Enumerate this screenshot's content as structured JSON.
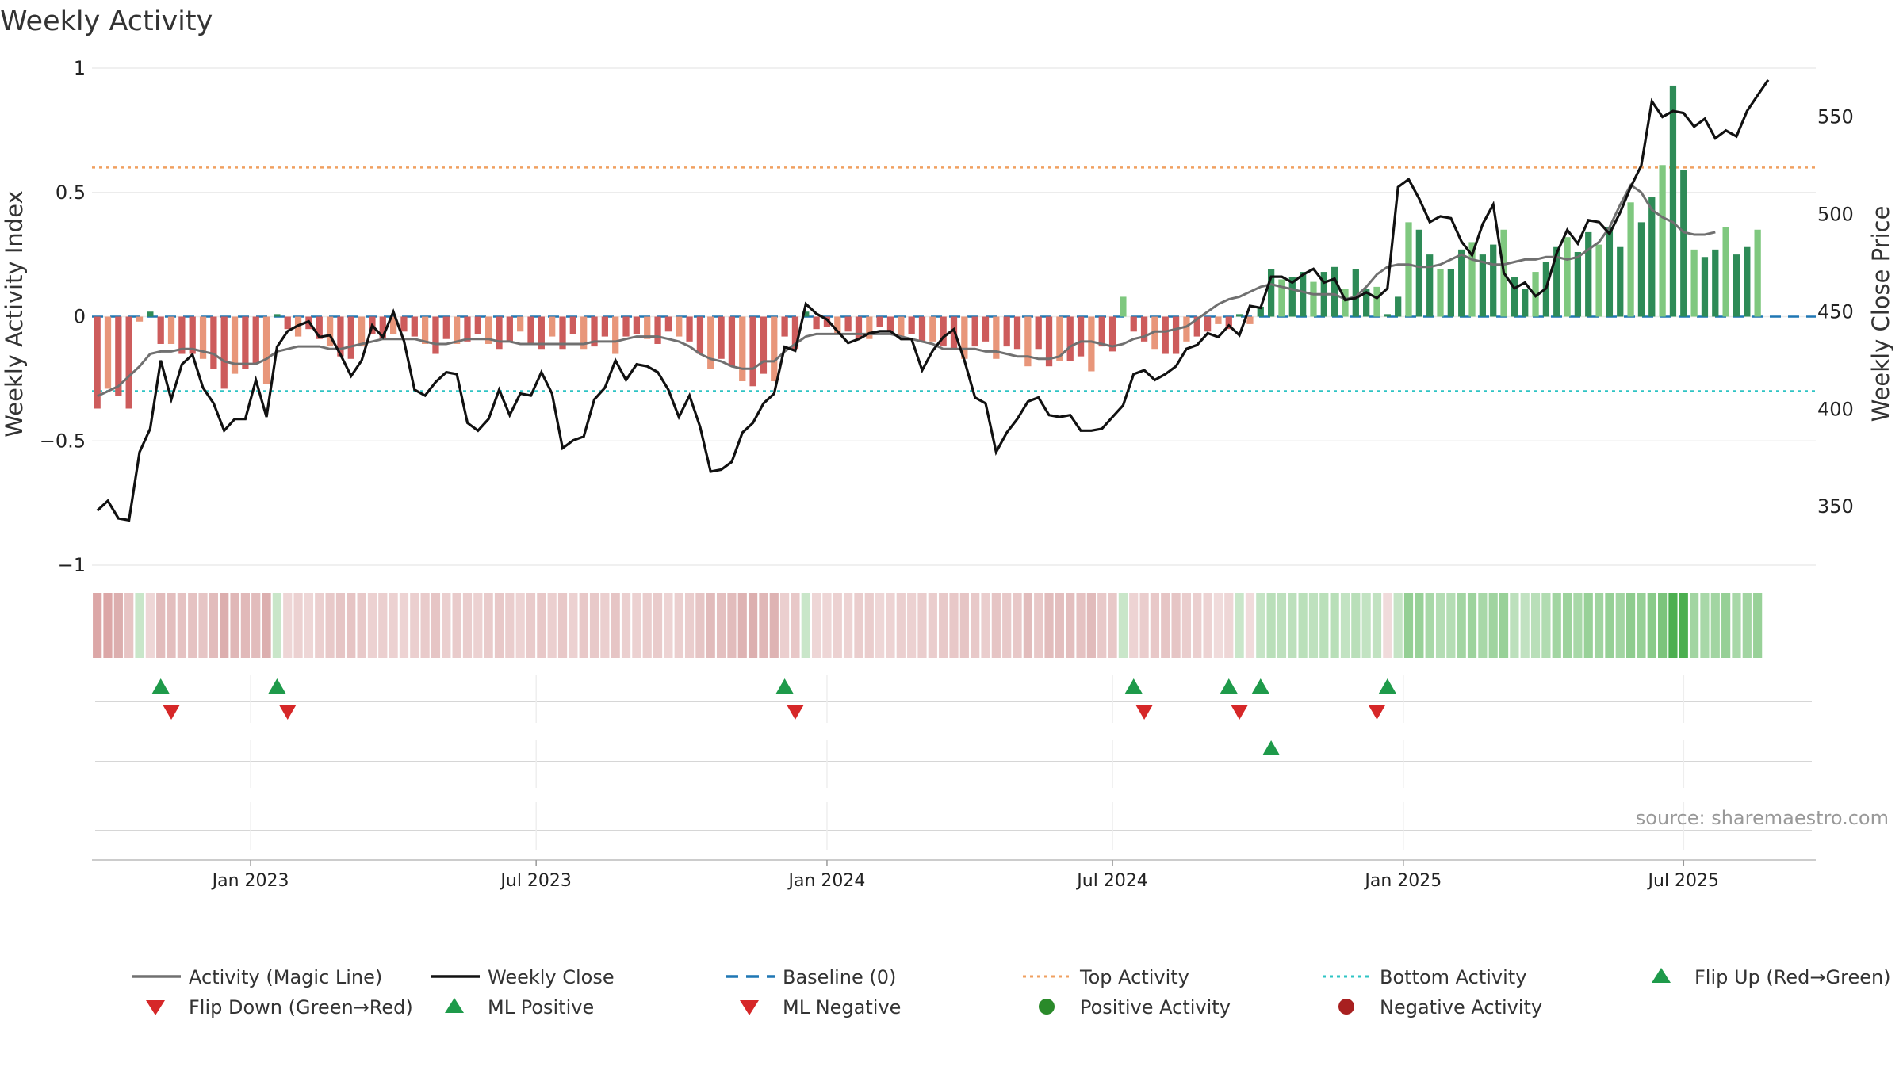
{
  "chart_data": {
    "type": "bar+line",
    "title": "Weekly Activity",
    "ylabel_left": "Weekly Activity Index",
    "ylabel_right": "Weekly Close Price",
    "ylim_left": [
      -1,
      1
    ],
    "ylim_right": [
      320,
      575
    ],
    "left_ticks": [
      {
        "v": 1,
        "label": "1"
      },
      {
        "v": 0.5,
        "label": "0.5"
      },
      {
        "v": 0,
        "label": "0"
      },
      {
        "v": -0.5,
        "label": "−0.5"
      },
      {
        "v": -1,
        "label": "−1"
      }
    ],
    "right_ticks": [
      {
        "v": 550,
        "label": "550"
      },
      {
        "v": 500,
        "label": "500"
      },
      {
        "v": 450,
        "label": "450"
      },
      {
        "v": 400,
        "label": "400"
      },
      {
        "v": 350,
        "label": "350"
      }
    ],
    "x_range_weeks": [
      0,
      163
    ],
    "x_ticks": [
      {
        "week": 15,
        "label": "Jan 2023"
      },
      {
        "week": 42,
        "label": "Jul 2023"
      },
      {
        "week": 69.5,
        "label": "Jan 2024"
      },
      {
        "week": 96.5,
        "label": "Jul 2024"
      },
      {
        "week": 124,
        "label": "Jan 2025"
      },
      {
        "week": 150.5,
        "label": "Jul 2025"
      }
    ],
    "top_activity": 0.6,
    "bottom_activity": -0.3,
    "baseline": 0,
    "activity": [
      -0.37,
      -0.29,
      -0.32,
      -0.37,
      -0.02,
      0.02,
      -0.11,
      -0.11,
      -0.15,
      -0.15,
      -0.17,
      -0.21,
      -0.29,
      -0.23,
      -0.21,
      -0.19,
      -0.27,
      0.01,
      -0.05,
      -0.08,
      -0.05,
      -0.09,
      -0.12,
      -0.16,
      -0.17,
      -0.12,
      -0.07,
      -0.09,
      -0.07,
      -0.06,
      -0.08,
      -0.11,
      -0.15,
      -0.09,
      -0.11,
      -0.1,
      -0.07,
      -0.11,
      -0.13,
      -0.1,
      -0.06,
      -0.11,
      -0.13,
      -0.08,
      -0.13,
      -0.07,
      -0.13,
      -0.12,
      -0.08,
      -0.15,
      -0.08,
      -0.07,
      -0.09,
      -0.11,
      -0.06,
      -0.08,
      -0.1,
      -0.15,
      -0.21,
      -0.17,
      -0.2,
      -0.26,
      -0.28,
      -0.23,
      -0.26,
      -0.08,
      -0.13,
      0.02,
      -0.05,
      -0.04,
      -0.07,
      -0.06,
      -0.09,
      -0.09,
      -0.04,
      -0.06,
      -0.08,
      -0.07,
      -0.1,
      -0.1,
      -0.12,
      -0.13,
      -0.17,
      -0.12,
      -0.1,
      -0.17,
      -0.12,
      -0.13,
      -0.2,
      -0.13,
      -0.2,
      -0.18,
      -0.18,
      -0.16,
      -0.22,
      -0.12,
      -0.14,
      0.08,
      -0.06,
      -0.1,
      -0.13,
      -0.15,
      -0.15,
      -0.1,
      -0.08,
      -0.06,
      -0.03,
      -0.05,
      0.01,
      -0.03,
      0.04,
      0.19,
      0.15,
      0.16,
      0.18,
      0.14,
      0.18,
      0.2,
      0.11,
      0.19,
      0.11,
      0.12,
      0.01,
      0.08,
      0.38,
      0.35,
      0.25,
      0.19,
      0.19,
      0.27,
      0.3,
      0.25,
      0.29,
      0.35,
      0.16,
      0.11,
      0.18,
      0.22,
      0.28,
      0.32,
      0.26,
      0.34,
      0.29,
      0.36,
      0.28,
      0.46,
      0.38,
      0.48,
      0.61,
      0.93,
      0.59,
      0.27,
      0.24,
      0.27,
      0.36,
      0.25,
      0.28,
      0.35
    ],
    "magic_line": [
      -0.32,
      -0.3,
      -0.28,
      -0.24,
      -0.2,
      -0.15,
      -0.14,
      -0.14,
      -0.13,
      -0.13,
      -0.14,
      -0.15,
      -0.18,
      -0.19,
      -0.19,
      -0.19,
      -0.17,
      -0.14,
      -0.13,
      -0.12,
      -0.12,
      -0.12,
      -0.13,
      -0.13,
      -0.12,
      -0.11,
      -0.1,
      -0.09,
      -0.09,
      -0.09,
      -0.09,
      -0.1,
      -0.11,
      -0.11,
      -0.1,
      -0.09,
      -0.09,
      -0.09,
      -0.1,
      -0.1,
      -0.11,
      -0.11,
      -0.11,
      -0.11,
      -0.11,
      -0.11,
      -0.11,
      -0.1,
      -0.1,
      -0.1,
      -0.09,
      -0.08,
      -0.08,
      -0.08,
      -0.09,
      -0.1,
      -0.12,
      -0.15,
      -0.17,
      -0.18,
      -0.2,
      -0.21,
      -0.21,
      -0.18,
      -0.18,
      -0.14,
      -0.11,
      -0.08,
      -0.07,
      -0.07,
      -0.07,
      -0.07,
      -0.07,
      -0.07,
      -0.07,
      -0.07,
      -0.08,
      -0.09,
      -0.1,
      -0.11,
      -0.13,
      -0.13,
      -0.13,
      -0.13,
      -0.14,
      -0.14,
      -0.15,
      -0.16,
      -0.16,
      -0.17,
      -0.17,
      -0.16,
      -0.12,
      -0.1,
      -0.1,
      -0.11,
      -0.12,
      -0.11,
      -0.09,
      -0.08,
      -0.06,
      -0.06,
      -0.05,
      -0.04,
      -0.01,
      0.02,
      0.05,
      0.07,
      0.08,
      0.1,
      0.12,
      0.13,
      0.12,
      0.11,
      0.1,
      0.09,
      0.09,
      0.09,
      0.07,
      0.08,
      0.12,
      0.17,
      0.2,
      0.21,
      0.21,
      0.2,
      0.2,
      0.21,
      0.23,
      0.25,
      0.23,
      0.22,
      0.21,
      0.21,
      0.22,
      0.23,
      0.23,
      0.24,
      0.24,
      0.23,
      0.24,
      0.27,
      0.3,
      0.36,
      0.45,
      0.53,
      0.5,
      0.43,
      0.4,
      0.38,
      0.34,
      0.33,
      0.33,
      0.34
    ],
    "weekly_close": [
      348,
      353,
      344,
      343,
      378,
      390,
      425,
      405,
      423,
      428,
      411,
      403,
      389,
      395,
      395,
      415,
      396,
      432,
      440,
      443,
      445,
      437,
      438,
      428,
      417,
      425,
      443,
      437,
      450,
      435,
      410,
      407,
      414,
      419,
      418,
      393,
      389,
      395,
      410,
      397,
      408,
      407,
      419,
      408,
      380,
      384,
      386,
      405,
      411,
      425,
      415,
      423,
      422,
      419,
      410,
      396,
      407,
      391,
      368,
      369,
      373,
      388,
      393,
      403,
      408,
      432,
      430,
      454,
      449,
      446,
      440,
      434,
      436,
      439,
      440,
      440,
      436,
      436,
      420,
      430,
      437,
      441,
      425,
      406,
      403,
      378,
      388,
      395,
      404,
      406,
      397,
      396,
      397,
      389,
      389,
      390,
      396,
      402,
      418,
      420,
      415,
      418,
      422,
      431,
      433,
      439,
      437,
      443,
      438,
      453,
      452,
      468,
      468,
      465,
      469,
      472,
      465,
      467,
      456,
      457,
      460,
      457,
      462,
      514,
      518,
      508,
      496,
      499,
      498,
      486,
      479,
      495,
      505,
      470,
      462,
      465,
      458,
      462,
      480,
      492,
      485,
      497,
      496,
      490,
      501,
      514,
      525,
      558,
      550,
      553,
      552,
      545,
      549,
      539,
      543,
      540,
      553,
      561,
      569
    ],
    "segment_shades": [
      "#dca7a7",
      "#dca7a7",
      "#dcaeae",
      "#e7c4c4",
      "#c9e6c9",
      "#eed6d6",
      "#e2bcbc",
      "#e3bebe",
      "#e5c2c2",
      "#e5c2c2",
      "#e6c5c5",
      "#e2bcbc",
      "#dcaeae",
      "#e0b7b7",
      "#e1b9b9",
      "#e2bcbc",
      "#dcafaf",
      "#c9e6c9",
      "#eed6d6",
      "#ecd1d1",
      "#eed6d6",
      "#ebcfcf",
      "#e8c9c9",
      "#e6c5c5",
      "#e6c4c4",
      "#e8c9c9",
      "#ecd1d1",
      "#ebcfcf",
      "#ecd1d1",
      "#edd3d3",
      "#ebcfcf",
      "#e9cbcb",
      "#e6c5c5",
      "#ebcfcf",
      "#e9cbcb",
      "#eacdcd",
      "#ecd1d1",
      "#e9cbcb",
      "#e8c8c8",
      "#eacdcd",
      "#edd3d3",
      "#e9cbcb",
      "#e8c8c8",
      "#ebcfcf",
      "#e8c8c8",
      "#ecd1d1",
      "#e8c8c8",
      "#e8c9c9",
      "#ebcfcf",
      "#e6c5c5",
      "#ebcfcf",
      "#ecd1d1",
      "#eacdcd",
      "#e9cbcb",
      "#edd3d3",
      "#ebcfcf",
      "#eacdcd",
      "#e6c5c5",
      "#e1bbbb",
      "#e4c0c0",
      "#e2bcbc",
      "#deb3b3",
      "#dcafaf",
      "#e0b7b7",
      "#deb3b3",
      "#ebcfcf",
      "#e8c8c8",
      "#c9e6c9",
      "#eed6d6",
      "#eed6d6",
      "#ecd1d1",
      "#edd3d3",
      "#eacdcd",
      "#eacdcd",
      "#eed6d6",
      "#edd3d3",
      "#ebcfcf",
      "#ecd1d1",
      "#eacdcd",
      "#eacdcd",
      "#e8c9c9",
      "#e8c8c8",
      "#e6c5c5",
      "#e8c9c9",
      "#eacdcd",
      "#e6c5c5",
      "#e8c9c9",
      "#e8c8c8",
      "#e2bcbc",
      "#e8c8c8",
      "#e2bcbc",
      "#e3bebe",
      "#e3bebe",
      "#e5c2c2",
      "#e1bbbb",
      "#e8c9c9",
      "#e8c8c8",
      "#c9e6c9",
      "#edd3d3",
      "#eacdcd",
      "#e8c8c8",
      "#e6c5c5",
      "#e6c5c5",
      "#eacdcd",
      "#ebcfcf",
      "#edd3d3",
      "#f0dbdb",
      "#eed6d6",
      "#c9e6c9",
      "#f0dbdb",
      "#c5e4c5",
      "#b9dfb9",
      "#bde0bd",
      "#bce0bc",
      "#bae0ba",
      "#bee1be",
      "#bae0ba",
      "#b8dfb8",
      "#c2e3c2",
      "#b9dfb9",
      "#c2e3c2",
      "#c1e2c1",
      "#f0dbdb",
      "#c5e4c5",
      "#94cf94",
      "#98d198",
      "#a8d8a8",
      "#b4ddb4",
      "#b4ddb4",
      "#a2d5a2",
      "#9dd39d",
      "#a8d8a8",
      "#a0d4a0",
      "#98d198",
      "#bce0bc",
      "#c1e2c1",
      "#b9dfb9",
      "#b1dcb1",
      "#a2d5a2",
      "#9dd39d",
      "#a8d8a8",
      "#98d198",
      "#a0d4a0",
      "#96d096",
      "#a2d5a2",
      "#8ecc8e",
      "#96d096",
      "#8acb8a",
      "#7cc47c",
      "#4caf50",
      "#4caf50",
      "#a2d5a2",
      "#a8d8a8",
      "#a2d5a2",
      "#96d096",
      "#a8d8a8",
      "#a2d5a2",
      "#98d198"
    ],
    "flip_up_weeks": [
      6,
      17,
      65,
      98,
      107,
      110,
      122
    ],
    "flip_down_weeks": [
      7,
      18,
      66,
      99,
      108,
      121
    ],
    "ml_positive_weeks": [
      111
    ],
    "source": "source: sharemaestro.com",
    "legend": [
      {
        "label": "Activity (Magic Line)",
        "symbol": "line",
        "color": "#707070"
      },
      {
        "label": "Weekly Close",
        "symbol": "line",
        "color": "#111111"
      },
      {
        "label": "Baseline (0)",
        "symbol": "dash",
        "color": "#1f77b4"
      },
      {
        "label": "Top Activity",
        "symbol": "dots",
        "color": "#f0a060"
      },
      {
        "label": "Bottom Activity",
        "symbol": "dots",
        "color": "#2ec4c4"
      },
      {
        "label": "Flip Up (Red→Green)",
        "symbol": "tri-up",
        "color": "#1e9a4a"
      },
      {
        "label": "Flip Down (Green→Red)",
        "symbol": "tri-down",
        "color": "#d62728"
      },
      {
        "label": "ML Positive",
        "symbol": "tri-up",
        "color": "#1e9a4a"
      },
      {
        "label": "ML Negative",
        "symbol": "tri-down",
        "color": "#d62728"
      },
      {
        "label": "Positive Activity",
        "symbol": "circle",
        "color": "#2a8a2a"
      },
      {
        "label": "Negative Activity",
        "symbol": "circle",
        "color": "#a82020"
      }
    ],
    "colors": {
      "neg_strong": "#cd5c5c",
      "neg_light": "#e8967a",
      "pos_strong": "#2e8b57",
      "pos_light": "#7fc87f",
      "magic_line": "#707070",
      "close": "#111111",
      "baseline": "#1f77b4",
      "top": "#f0a060",
      "bottom": "#2ec4c4",
      "flip_up": "#1e9a4a",
      "flip_down": "#d62728"
    }
  }
}
